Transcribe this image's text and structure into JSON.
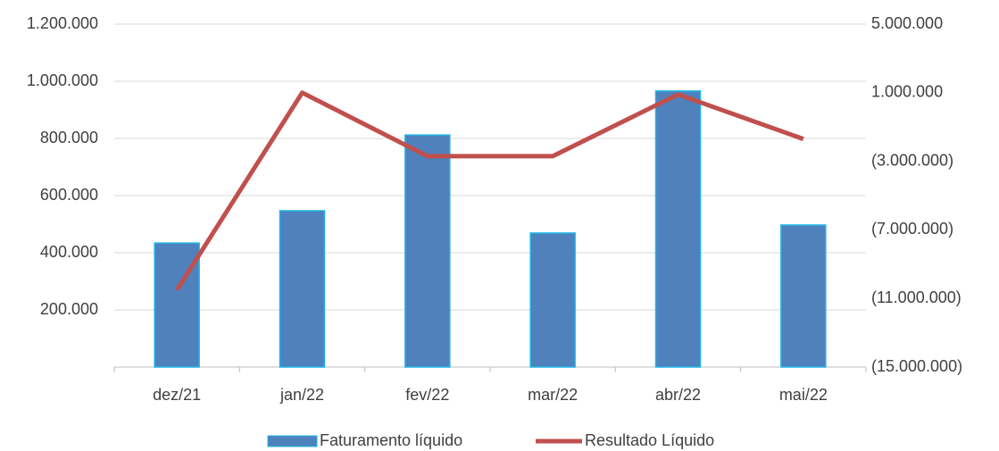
{
  "chart_data": {
    "type": "bar_line",
    "categories": [
      "dez/21",
      "jan/22",
      "fev/22",
      "mar/22",
      "abr/22",
      "mai/22"
    ],
    "series": [
      {
        "name": "Faturamento líquido",
        "type": "bar",
        "color": "#4f81bd",
        "values": [
          434000,
          547000,
          812000,
          469000,
          966000,
          497000
        ]
      },
      {
        "name": "Resultado Líquido",
        "type": "line",
        "axis": "y2",
        "color": "#c0504d",
        "values": [
          -10500000,
          1000000,
          -2700000,
          -2700000,
          900000,
          -1700000
        ]
      }
    ],
    "ylim": [
      0,
      1200000
    ],
    "yticks": [
      {
        "value": 200000,
        "label": "200.000"
      },
      {
        "value": 400000,
        "label": "400.000"
      },
      {
        "value": 600000,
        "label": "600.000"
      },
      {
        "value": 800000,
        "label": "800.000"
      },
      {
        "value": 1000000,
        "label": "1.000.000"
      },
      {
        "value": 1200000,
        "label": "1.200.000"
      }
    ],
    "y2lim": [
      -15000000,
      5000000
    ],
    "y2ticks": [
      {
        "value": -15000000,
        "label": "(15.000.000)"
      },
      {
        "value": -11000000,
        "label": "(11.000.000)"
      },
      {
        "value": -7000000,
        "label": "(7.000.000)"
      },
      {
        "value": -3000000,
        "label": "(3.000.000)"
      },
      {
        "value": 1000000,
        "label": "1.000.000"
      },
      {
        "value": 5000000,
        "label": "5.000.000"
      }
    ],
    "grid": true,
    "legend": "bottom"
  }
}
